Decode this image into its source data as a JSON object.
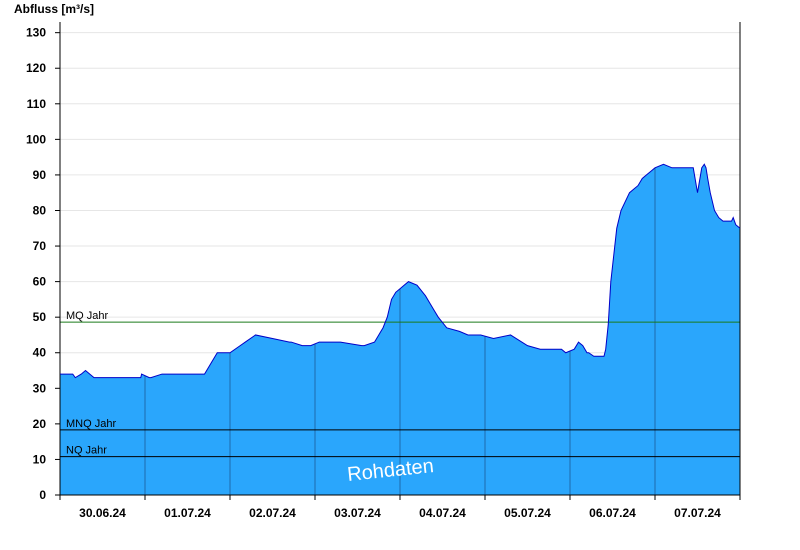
{
  "chart_data": {
    "type": "area",
    "title": "",
    "ylabel": "Abfluss [m³/s]",
    "xlabel": "",
    "ylim": [
      0,
      133
    ],
    "yticks": [
      0,
      10,
      20,
      30,
      40,
      50,
      60,
      70,
      80,
      90,
      100,
      110,
      120,
      130
    ],
    "xlim": [
      0,
      8
    ],
    "xunit": "days since 29.06.24 24:00 (ticks are daily)",
    "xtick_labels": [
      "30.06.24",
      "01.07.24",
      "02.07.24",
      "03.07.24",
      "04.07.24",
      "05.07.24",
      "06.07.24",
      "07.07.24"
    ],
    "grid": true,
    "colors": {
      "fill": "#2aa6fc",
      "line": "#0000c8",
      "mq_line": "#1a7a1a",
      "ref_line": "#000000"
    },
    "reference_lines": [
      {
        "label": "MQ Jahr",
        "value": 48.6,
        "color": "#1a7a1a"
      },
      {
        "label": "MNQ Jahr",
        "value": 18.3,
        "color": "#000000"
      },
      {
        "label": "NQ Jahr",
        "value": 10.8,
        "color": "#000000"
      }
    ],
    "watermark": "Rohdaten",
    "series": [
      {
        "x": [
          0,
          0.15,
          0.18,
          0.25,
          0.3,
          0.4,
          0.42,
          0.5,
          0.95,
          0.96,
          1.05,
          1.07,
          1.2,
          1.22,
          1.7,
          1.75,
          1.85,
          1.9,
          2.0,
          2.12,
          2.18,
          2.3,
          2.5,
          2.7,
          2.72,
          2.85,
          2.95,
          3.05,
          3.3,
          3.55,
          3.58,
          3.7,
          3.75,
          3.8,
          3.85,
          3.9,
          3.95,
          4.0,
          4.05,
          4.1,
          4.2,
          4.3,
          4.35,
          4.4,
          4.45,
          4.55,
          4.7,
          4.8,
          4.95,
          5.1,
          5.3,
          5.5,
          5.65,
          5.8,
          5.85,
          5.9,
          5.95,
          6.05,
          6.1,
          6.15,
          6.2,
          6.22,
          6.28,
          6.4,
          6.42,
          6.45,
          6.48,
          6.55,
          6.6,
          6.7,
          6.8,
          6.85,
          6.9,
          6.95,
          7.0,
          7.1,
          7.2,
          7.3,
          7.45,
          7.5,
          7.55,
          7.58,
          7.6,
          7.62,
          7.65,
          7.7,
          7.75,
          7.8,
          7.9,
          7.92,
          7.95,
          8.0
        ],
        "y": [
          34,
          34,
          33,
          34,
          35,
          33,
          33,
          33,
          33,
          34,
          33,
          33,
          34,
          34,
          34,
          36,
          40,
          40,
          40,
          42,
          43,
          45,
          44,
          43,
          43,
          42,
          42,
          43,
          43,
          42,
          42,
          43,
          45,
          47,
          50,
          55,
          57,
          58,
          59,
          60,
          59,
          56,
          54,
          52,
          50,
          47,
          46,
          45,
          45,
          44,
          45,
          42,
          41,
          41,
          41,
          41,
          40,
          41,
          43,
          42,
          40,
          40,
          39,
          39,
          41,
          48,
          60,
          75,
          80,
          85,
          87,
          89,
          90,
          91,
          92,
          93,
          92,
          92,
          92,
          85,
          92,
          93,
          92,
          89,
          85,
          80,
          78,
          77,
          77,
          78,
          76,
          75
        ]
      }
    ]
  }
}
